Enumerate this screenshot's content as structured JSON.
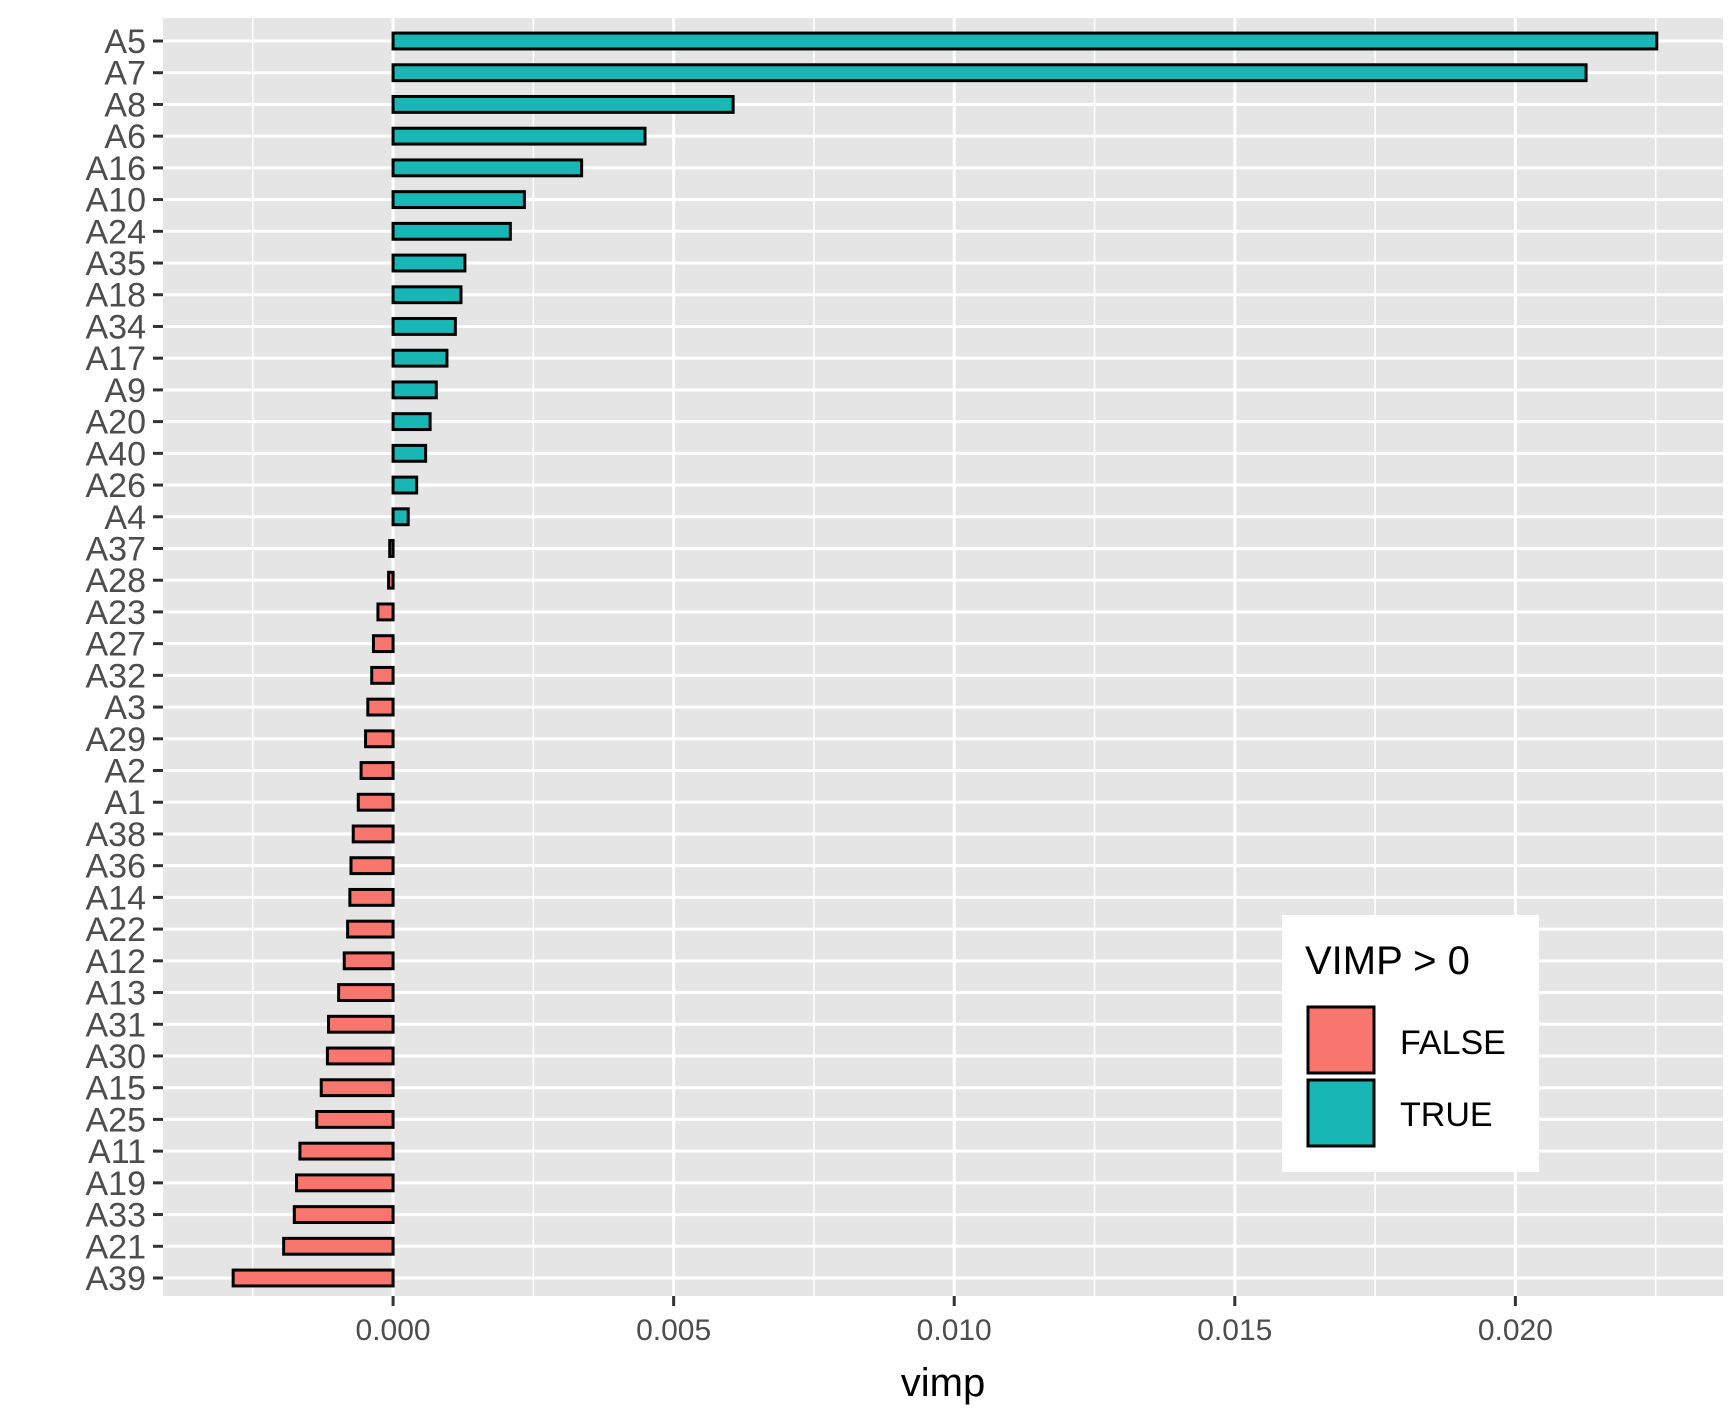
{
  "chart_data": {
    "type": "bar",
    "orientation": "horizontal",
    "xlabel": "vimp",
    "ylabel": "",
    "xlim": [
      -0.0041,
      0.0237
    ],
    "x_ticks": [
      {
        "value": 0.0,
        "label": "0.000"
      },
      {
        "value": 0.005,
        "label": "0.005"
      },
      {
        "value": 0.01,
        "label": "0.010"
      },
      {
        "value": 0.015,
        "label": "0.015"
      },
      {
        "value": 0.02,
        "label": "0.020"
      }
    ],
    "x_minor_ticks": [
      -0.0025,
      0.0025,
      0.0075,
      0.0125,
      0.0175,
      0.0225
    ],
    "grid": true,
    "legend": {
      "title": "VIMP > 0",
      "position": "bottom-right",
      "entries": [
        {
          "label": "FALSE",
          "color": "#F8766D"
        },
        {
          "label": "TRUE",
          "color": "#19B6B6"
        }
      ]
    },
    "colors": {
      "FALSE": "#F8766D",
      "TRUE": "#19B6B6",
      "panel": "#E5E5E5",
      "grid": "#FFFFFF",
      "outline": "#000000"
    },
    "categories": [
      "A5",
      "A7",
      "A8",
      "A6",
      "A16",
      "A10",
      "A24",
      "A35",
      "A18",
      "A34",
      "A17",
      "A9",
      "A20",
      "A40",
      "A26",
      "A4",
      "A37",
      "A28",
      "A23",
      "A27",
      "A32",
      "A3",
      "A29",
      "A2",
      "A1",
      "A38",
      "A36",
      "A14",
      "A22",
      "A12",
      "A13",
      "A31",
      "A30",
      "A15",
      "A25",
      "A11",
      "A19",
      "A33",
      "A21",
      "A39"
    ],
    "values": [
      0.02252,
      0.02126,
      0.00606,
      0.00449,
      0.00336,
      0.00234,
      0.00209,
      0.00128,
      0.00121,
      0.00111,
      0.00096,
      0.00077,
      0.00066,
      0.00058,
      0.00042,
      0.00027,
      -6e-05,
      -8e-05,
      -0.00027,
      -0.00035,
      -0.00038,
      -0.00045,
      -0.00049,
      -0.00057,
      -0.00062,
      -0.00071,
      -0.00075,
      -0.00077,
      -0.00081,
      -0.00087,
      -0.00097,
      -0.00115,
      -0.00117,
      -0.00128,
      -0.00136,
      -0.00166,
      -0.00172,
      -0.00176,
      -0.00195,
      -0.00285
    ]
  }
}
